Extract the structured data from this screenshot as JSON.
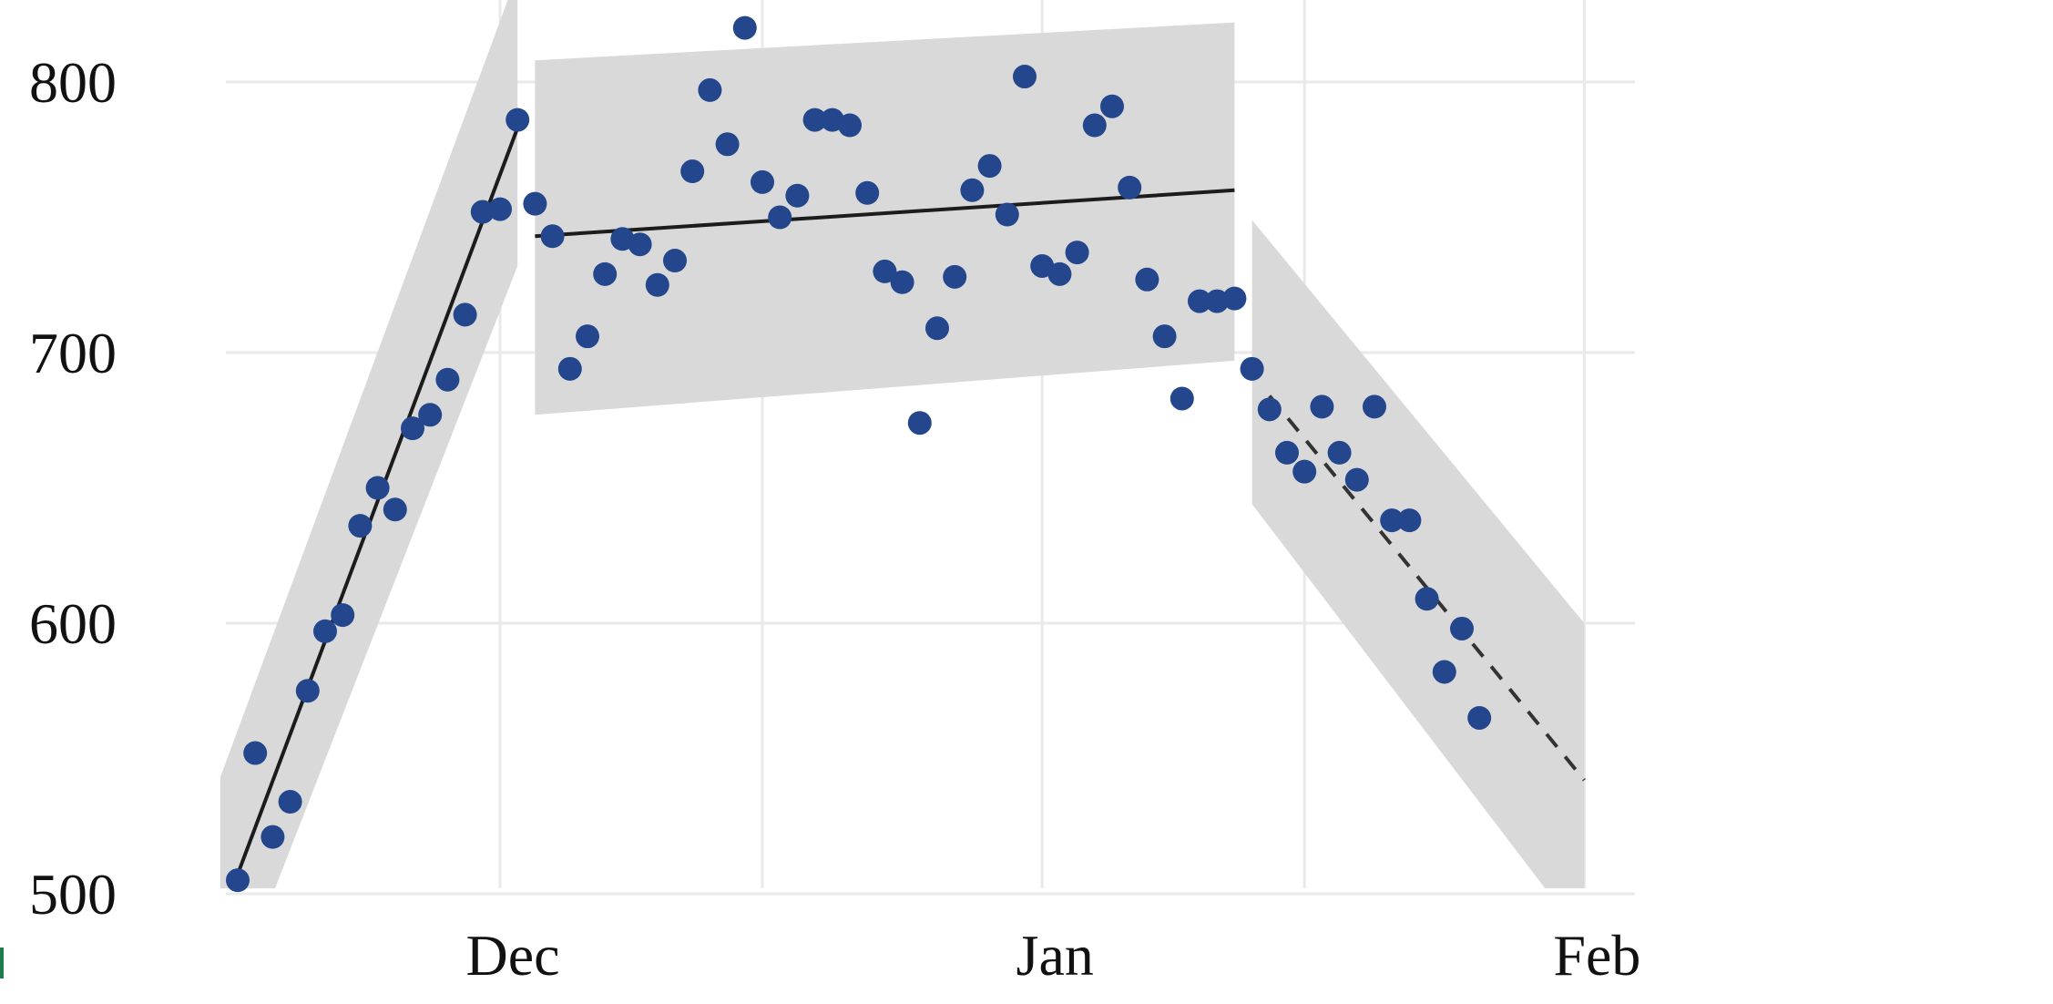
{
  "chart_data": {
    "type": "scatter",
    "title": "",
    "xlabel": "",
    "ylabel": "",
    "grid": true,
    "legend": "none",
    "x_unit": "date",
    "xlim": [
      "2021-11-15",
      "2022-02-01"
    ],
    "ylim": [
      485,
      815
    ],
    "y_ticks": [
      500,
      600,
      700,
      800
    ],
    "x_ticks": [
      {
        "date": "2021-12-01",
        "label": "Dec"
      },
      {
        "date": "2021-12-16",
        "label": ""
      },
      {
        "date": "2022-01-01",
        "label": "Jan"
      },
      {
        "date": "2022-01-16",
        "label": ""
      },
      {
        "date": "2022-02-01",
        "label": "Feb"
      }
    ],
    "colors": {
      "points": "#23468c",
      "band": "#d9d9d9",
      "line": "#1c1c1c",
      "grid": "#e9e9e9"
    },
    "points": [
      [
        "2021-11-16",
        505
      ],
      [
        "2021-11-17",
        552
      ],
      [
        "2021-11-18",
        521
      ],
      [
        "2021-11-19",
        534
      ],
      [
        "2021-11-20",
        575
      ],
      [
        "2021-11-21",
        597
      ],
      [
        "2021-11-22",
        603
      ],
      [
        "2021-11-23",
        636
      ],
      [
        "2021-11-24",
        650
      ],
      [
        "2021-11-25",
        642
      ],
      [
        "2021-11-26",
        672
      ],
      [
        "2021-11-27",
        677
      ],
      [
        "2021-11-28",
        690
      ],
      [
        "2021-11-29",
        714
      ],
      [
        "2021-11-30",
        752
      ],
      [
        "2021-12-01",
        753
      ],
      [
        "2021-12-02",
        786
      ],
      [
        "2021-12-03",
        755
      ],
      [
        "2021-12-04",
        743
      ],
      [
        "2021-12-05",
        694
      ],
      [
        "2021-12-06",
        706
      ],
      [
        "2021-12-07",
        729
      ],
      [
        "2021-12-08",
        742
      ],
      [
        "2021-12-09",
        740
      ],
      [
        "2021-12-10",
        725
      ],
      [
        "2021-12-11",
        734
      ],
      [
        "2021-12-12",
        767
      ],
      [
        "2021-12-13",
        797
      ],
      [
        "2021-12-14",
        777
      ],
      [
        "2021-12-15",
        820
      ],
      [
        "2021-12-16",
        763
      ],
      [
        "2021-12-17",
        750
      ],
      [
        "2021-12-18",
        758
      ],
      [
        "2021-12-19",
        786
      ],
      [
        "2021-12-20",
        786
      ],
      [
        "2021-12-21",
        784
      ],
      [
        "2021-12-22",
        759
      ],
      [
        "2021-12-23",
        730
      ],
      [
        "2021-12-24",
        726
      ],
      [
        "2021-12-25",
        674
      ],
      [
        "2021-12-26",
        709
      ],
      [
        "2021-12-27",
        728
      ],
      [
        "2021-12-28",
        760
      ],
      [
        "2021-12-29",
        769
      ],
      [
        "2021-12-30",
        751
      ],
      [
        "2021-12-31",
        802
      ],
      [
        "2022-01-01",
        732
      ],
      [
        "2022-01-02",
        729
      ],
      [
        "2022-01-03",
        737
      ],
      [
        "2022-01-04",
        784
      ],
      [
        "2022-01-05",
        791
      ],
      [
        "2022-01-06",
        761
      ],
      [
        "2022-01-07",
        727
      ],
      [
        "2022-01-08",
        706
      ],
      [
        "2022-01-09",
        683
      ],
      [
        "2022-01-10",
        719
      ],
      [
        "2022-01-11",
        719
      ],
      [
        "2022-01-12",
        720
      ],
      [
        "2022-01-13",
        694
      ],
      [
        "2022-01-14",
        679
      ],
      [
        "2022-01-15",
        663
      ],
      [
        "2022-01-16",
        656
      ],
      [
        "2022-01-17",
        680
      ],
      [
        "2022-01-18",
        663
      ],
      [
        "2022-01-19",
        653
      ],
      [
        "2022-01-20",
        680
      ],
      [
        "2022-01-21",
        638
      ],
      [
        "2022-01-22",
        638
      ],
      [
        "2022-01-23",
        609
      ],
      [
        "2022-01-24",
        582
      ],
      [
        "2022-01-25",
        598
      ],
      [
        "2022-01-26",
        565
      ]
    ],
    "segments": [
      {
        "line": [
          [
            "2021-11-15",
            490
          ],
          [
            "2021-12-02",
            783
          ]
        ],
        "band_upper": [
          [
            "2021-11-15",
            543
          ],
          [
            "2021-12-02",
            840
          ]
        ],
        "band_lower": [
          [
            "2021-11-15",
            450
          ],
          [
            "2021-12-02",
            732
          ]
        ],
        "style": "solid"
      },
      {
        "line": [
          [
            "2021-12-03",
            743
          ],
          [
            "2022-01-12",
            760
          ]
        ],
        "band_upper": [
          [
            "2021-12-03",
            808
          ],
          [
            "2022-01-12",
            822
          ]
        ],
        "band_lower": [
          [
            "2021-12-03",
            677
          ],
          [
            "2022-01-12",
            697
          ]
        ],
        "style": "solid"
      },
      {
        "line": [
          [
            "2022-01-14",
            684
          ],
          [
            "2022-02-01",
            542
          ]
        ],
        "band_upper": [
          [
            "2022-01-13",
            749
          ],
          [
            "2022-02-01",
            600
          ]
        ],
        "band_lower": [
          [
            "2022-01-13",
            644
          ],
          [
            "2022-02-01",
            483
          ]
        ],
        "style": "dashed"
      }
    ]
  }
}
